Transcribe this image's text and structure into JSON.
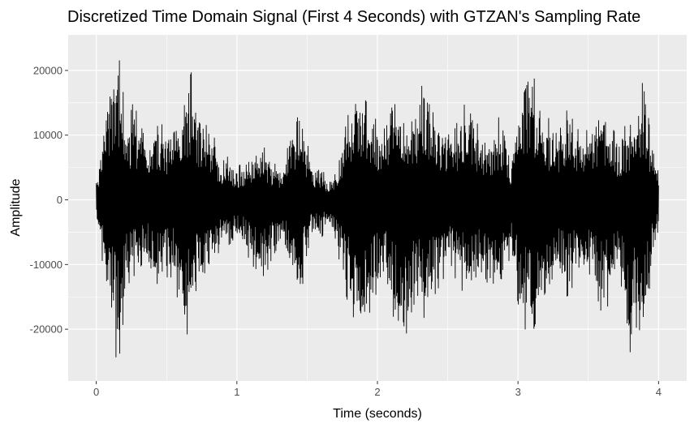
{
  "chart_data": {
    "type": "line",
    "title": "Discretized Time Domain Signal (First 4 Seconds) with GTZAN's Sampling Rate",
    "xlabel": "Time (seconds)",
    "ylabel": "Amplitude",
    "xlim": [
      -0.2,
      4.2
    ],
    "ylim": [
      -28000,
      25500
    ],
    "x_ticks": [
      0,
      1,
      2,
      3,
      4
    ],
    "x_tick_labels": [
      "0",
      "1",
      "2",
      "3",
      "4"
    ],
    "y_ticks": [
      -20000,
      -10000,
      0,
      10000,
      20000
    ],
    "y_tick_labels": [
      "-20000",
      "-10000",
      "0",
      "10000",
      "20000"
    ],
    "grid": true,
    "panel_background": "#ebebeb",
    "grid_color": "#ffffff",
    "line_color": "#000000",
    "envelope": {
      "t": [
        0.0,
        0.03,
        0.06,
        0.09,
        0.12,
        0.15,
        0.18,
        0.2,
        0.23,
        0.26,
        0.3,
        0.35,
        0.4,
        0.45,
        0.5,
        0.55,
        0.6,
        0.65,
        0.68,
        0.72,
        0.76,
        0.8,
        0.85,
        0.9,
        0.95,
        1.0,
        1.05,
        1.1,
        1.15,
        1.2,
        1.25,
        1.3,
        1.35,
        1.4,
        1.45,
        1.5,
        1.55,
        1.6,
        1.65,
        1.7,
        1.75,
        1.8,
        1.85,
        1.9,
        1.95,
        2.0,
        2.05,
        2.1,
        2.15,
        2.2,
        2.25,
        2.3,
        2.35,
        2.4,
        2.45,
        2.5,
        2.55,
        2.6,
        2.65,
        2.7,
        2.75,
        2.8,
        2.85,
        2.9,
        2.95,
        3.0,
        3.05,
        3.1,
        3.15,
        3.2,
        3.25,
        3.3,
        3.35,
        3.4,
        3.45,
        3.5,
        3.55,
        3.6,
        3.65,
        3.7,
        3.75,
        3.8,
        3.85,
        3.9,
        3.95,
        4.0
      ],
      "upper": [
        3000,
        7000,
        13000,
        17000,
        20000,
        23000,
        20000,
        14000,
        12000,
        15000,
        13000,
        9000,
        10000,
        12000,
        11000,
        13000,
        15000,
        18000,
        20000,
        15000,
        11000,
        12000,
        9000,
        6000,
        7000,
        5000,
        6000,
        7000,
        9000,
        8000,
        6000,
        5000,
        7000,
        12000,
        16000,
        9000,
        4000,
        5000,
        3000,
        4000,
        9000,
        14000,
        17000,
        16000,
        14000,
        12000,
        11000,
        18000,
        16000,
        13000,
        14000,
        17000,
        19000,
        13000,
        11000,
        12000,
        11000,
        14000,
        16000,
        12000,
        11000,
        10000,
        13000,
        12000,
        6000,
        14000,
        17000,
        20000,
        16000,
        13000,
        12000,
        11000,
        14000,
        12000,
        10000,
        11000,
        13000,
        15000,
        12000,
        10000,
        11000,
        13000,
        16000,
        19000,
        8000,
        5000
      ],
      "lower": [
        -3000,
        -7000,
        -13000,
        -18000,
        -21000,
        -26000,
        -22000,
        -16000,
        -13000,
        -12000,
        -11000,
        -9000,
        -13000,
        -13000,
        -12000,
        -12000,
        -18000,
        -21000,
        -17000,
        -13000,
        -13000,
        -12000,
        -9000,
        -7000,
        -8000,
        -6000,
        -7000,
        -10000,
        -11000,
        -12000,
        -9000,
        -7000,
        -8000,
        -14000,
        -16000,
        -8000,
        -5000,
        -6000,
        -4000,
        -6000,
        -12000,
        -17000,
        -19000,
        -21000,
        -17000,
        -14000,
        -13000,
        -17000,
        -21000,
        -25000,
        -16000,
        -17000,
        -19000,
        -15000,
        -13000,
        -11000,
        -12000,
        -14000,
        -15000,
        -12000,
        -11000,
        -14000,
        -15000,
        -13000,
        -8000,
        -16000,
        -20000,
        -21000,
        -17000,
        -14000,
        -12000,
        -12000,
        -15000,
        -13000,
        -12000,
        -11000,
        -14000,
        -18000,
        -16000,
        -12000,
        -14000,
        -24000,
        -19000,
        -23000,
        -10000,
        -5000
      ]
    }
  }
}
